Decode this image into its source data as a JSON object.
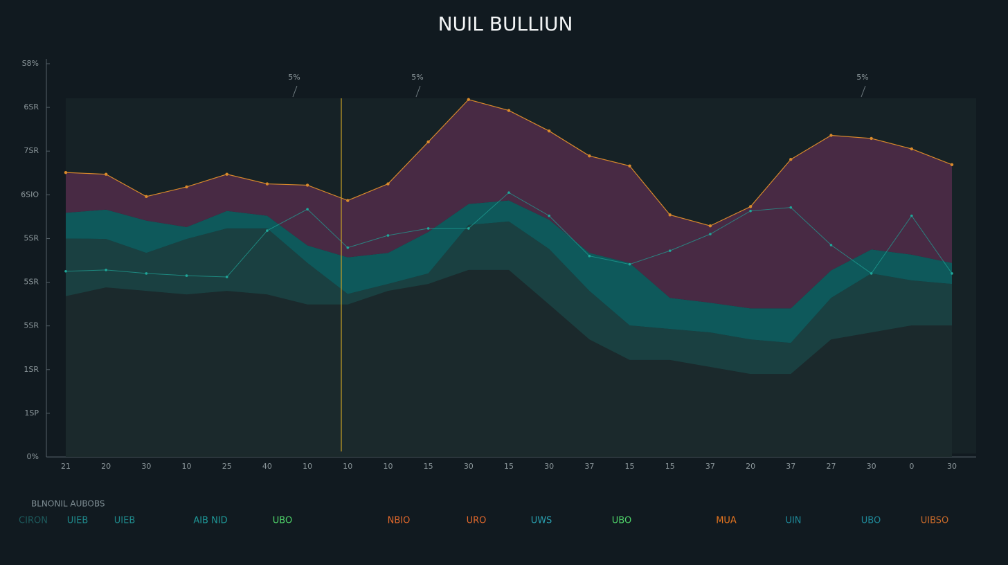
{
  "chart_data": {
    "type": "stacked_area",
    "title": "NUIL BULLIUN",
    "categories": [
      "21",
      "20",
      "30",
      "10",
      "25",
      "40",
      "10",
      "10",
      "10",
      "15",
      "30",
      "15",
      "30",
      "37",
      "15",
      "15",
      "37",
      "20",
      "37",
      "27",
      "30",
      "0",
      "30"
    ],
    "series": [
      {
        "color": "#1c2a2d",
        "values": [
          3.68,
          3.88,
          3.8,
          3.72,
          3.8,
          3.72,
          3.49,
          3.49,
          3.8,
          3.96,
          4.28,
          4.28,
          3.49,
          2.69,
          2.22,
          2.22,
          2.06,
          1.9,
          1.9,
          2.69,
          2.85,
          3.01,
          3.01
        ]
      },
      {
        "color": "#1b4343",
        "values": [
          1.32,
          1.11,
          0.87,
          1.27,
          1.43,
          1.51,
          0.95,
          0.24,
          0.16,
          0.24,
          1.03,
          1.11,
          1.27,
          1.11,
          0.79,
          0.71,
          0.79,
          0.79,
          0.71,
          0.95,
          1.35,
          1.03,
          0.95
        ]
      },
      {
        "color": "#0e5e5f",
        "values": [
          0.59,
          0.67,
          0.74,
          0.27,
          0.4,
          0.29,
          0.4,
          0.84,
          0.71,
          0.95,
          0.48,
          0.48,
          0.67,
          0.87,
          1.43,
          0.71,
          0.68,
          0.71,
          0.79,
          0.63,
          0.55,
          0.59,
          0.48
        ]
      },
      {
        "color": "#4d2b47",
        "line_color": "#d98a2b",
        "values": [
          0.92,
          0.81,
          0.55,
          0.92,
          0.84,
          0.73,
          1.38,
          1.3,
          1.58,
          2.06,
          2.39,
          2.06,
          2.03,
          2.22,
          2.22,
          1.9,
          1.76,
          2.33,
          3.41,
          3.09,
          2.54,
          2.42,
          2.25
        ]
      }
    ],
    "line_series": {
      "color": "#1fa79a",
      "values": [
        4.25,
        4.28,
        4.2,
        4.15,
        4.12,
        5.18,
        5.67,
        4.79,
        5.07,
        5.23,
        5.23,
        6.05,
        5.52,
        4.6,
        4.41,
        4.72,
        5.1,
        5.63,
        5.71,
        4.85,
        4.2,
        5.52,
        4.2
      ]
    },
    "ylim": [
      0,
      9
    ],
    "yticks": [
      {
        "value": 0,
        "label": "0%"
      },
      {
        "value": 1,
        "label": "1SP"
      },
      {
        "value": 2,
        "label": "1SR"
      },
      {
        "value": 3,
        "label": "5SR"
      },
      {
        "value": 4,
        "label": "5SR"
      },
      {
        "value": 5,
        "label": "5SR"
      },
      {
        "value": 6,
        "label": "6SIO"
      },
      {
        "value": 7,
        "label": "7SR"
      },
      {
        "value": 8,
        "label": "6SR"
      },
      {
        "value": 9,
        "label": "S8%"
      }
    ],
    "annotations": [
      "5%",
      "5%",
      "5%"
    ],
    "legend_title": "BLNONIL AUBOBS",
    "legend_items": [
      {
        "label": "CIRON",
        "color": "#1d5a5c"
      },
      {
        "label": "UIEB",
        "color": "#1f8a8c"
      },
      {
        "label": "UIEB",
        "color": "#1f8a8c"
      },
      {
        "label": "AIB NID",
        "color": "#1f9a9a"
      },
      {
        "label": "UBO",
        "color": "#4fd46a"
      },
      {
        "label": "NBIO",
        "color": "#e0682c"
      },
      {
        "label": "URO",
        "color": "#e0682c"
      },
      {
        "label": "UWS",
        "color": "#2aa0b0"
      },
      {
        "label": "UBO",
        "color": "#4fd46a"
      },
      {
        "label": "MUA",
        "color": "#e8761f"
      },
      {
        "label": "UIN",
        "color": "#1f8a9a"
      },
      {
        "label": "UBO",
        "color": "#1f8a9a"
      },
      {
        "label": "UIBSO",
        "color": "#c96a2a"
      }
    ]
  }
}
